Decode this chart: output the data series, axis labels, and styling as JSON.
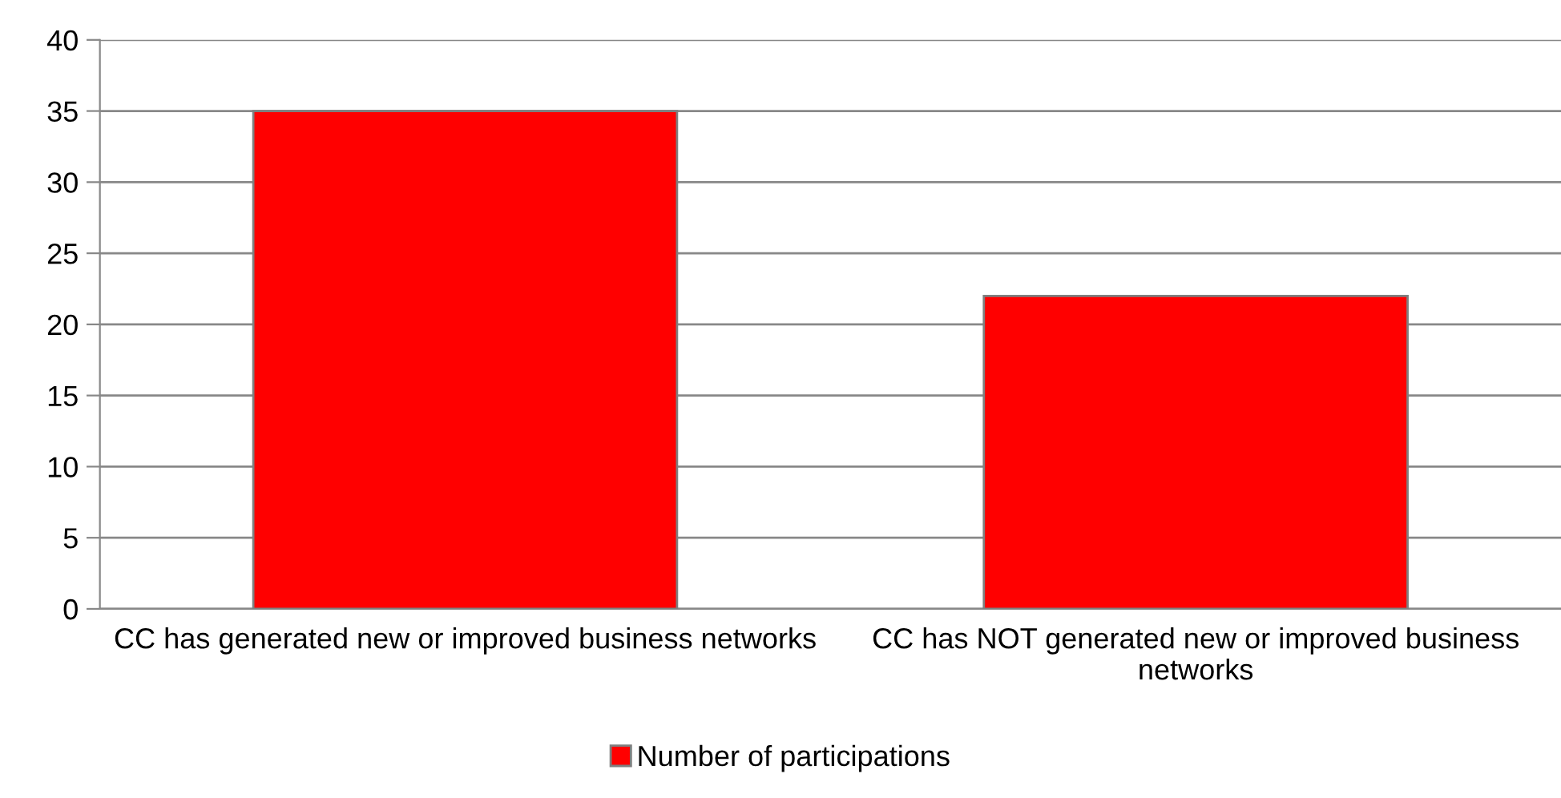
{
  "chart_data": {
    "type": "bar",
    "categories": [
      "CC has generated new or improved business networks",
      "CC has NOT generated new or improved business networks"
    ],
    "series": [
      {
        "name": "Number of participations",
        "color": "#ff0000",
        "values": [
          35,
          22
        ]
      }
    ],
    "ylim": [
      0,
      40
    ],
    "yticks": [
      0,
      5,
      10,
      15,
      20,
      25,
      30,
      35,
      40
    ],
    "grid": "y",
    "legend": "bottom"
  }
}
